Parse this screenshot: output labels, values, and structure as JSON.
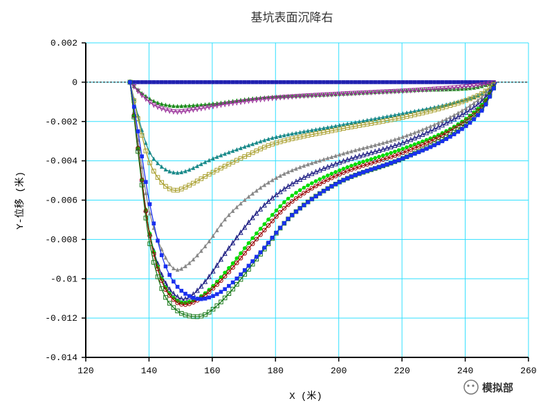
{
  "chart_data": {
    "type": "line",
    "title": "基坑表面沉降右",
    "xlabel": "X (米)",
    "ylabel": "Y-位移 (米)",
    "xlim": [
      120,
      260
    ],
    "ylim": [
      -0.014,
      0.002
    ],
    "x_ticks": [
      "120",
      "140",
      "160",
      "180",
      "200",
      "220",
      "240",
      "260"
    ],
    "y_ticks": [
      "0.002",
      "0",
      "-0.002",
      "-0.004",
      "-0.006",
      "-0.008",
      "-0.01",
      "-0.012",
      "-0.014"
    ],
    "grid": true,
    "legend": "none",
    "series": [
      {
        "color": "#2020b0",
        "marker": "square",
        "points": [
          [
            134,
            0
          ],
          [
            250,
            0
          ]
        ]
      },
      {
        "color": "#1e8c1e",
        "marker": "triangle",
        "points": [
          [
            134,
            0
          ],
          [
            138,
            -0.0006
          ],
          [
            142,
            -0.001
          ],
          [
            147,
            -0.0012
          ],
          [
            152,
            -0.0012
          ],
          [
            160,
            -0.0011
          ],
          [
            175,
            -0.0008
          ],
          [
            200,
            -0.0006
          ],
          [
            225,
            -0.0004
          ],
          [
            242,
            -0.0003
          ],
          [
            250,
            0
          ]
        ]
      },
      {
        "color": "#9a309a",
        "marker": "triangle-down",
        "points": [
          [
            134,
            0
          ],
          [
            138,
            -0.0007
          ],
          [
            142,
            -0.0012
          ],
          [
            148,
            -0.0015
          ],
          [
            154,
            -0.0014
          ],
          [
            165,
            -0.0011
          ],
          [
            180,
            -0.0008
          ],
          [
            200,
            -0.0006
          ],
          [
            225,
            -0.0004
          ],
          [
            242,
            -0.0002
          ],
          [
            250,
            0
          ]
        ]
      },
      {
        "color": "#1a8a8a",
        "marker": "triangle",
        "points": [
          [
            134,
            0
          ],
          [
            137,
            -0.002
          ],
          [
            140,
            -0.0035
          ],
          [
            144,
            -0.0043
          ],
          [
            148,
            -0.0046
          ],
          [
            152,
            -0.0045
          ],
          [
            160,
            -0.0039
          ],
          [
            170,
            -0.0033
          ],
          [
            180,
            -0.0028
          ],
          [
            200,
            -0.0022
          ],
          [
            220,
            -0.0016
          ],
          [
            235,
            -0.0011
          ],
          [
            245,
            -0.0006
          ],
          [
            250,
            0
          ]
        ]
      },
      {
        "color": "#aaa030",
        "marker": "open-square",
        "points": [
          [
            134,
            0
          ],
          [
            137,
            -0.0022
          ],
          [
            140,
            -0.004
          ],
          [
            144,
            -0.0051
          ],
          [
            148,
            -0.0055
          ],
          [
            152,
            -0.0053
          ],
          [
            160,
            -0.0046
          ],
          [
            170,
            -0.0038
          ],
          [
            180,
            -0.0031
          ],
          [
            200,
            -0.0024
          ],
          [
            220,
            -0.0018
          ],
          [
            235,
            -0.0012
          ],
          [
            245,
            -0.0006
          ],
          [
            250,
            0
          ]
        ]
      },
      {
        "color": "#888888",
        "marker": "triangle",
        "points": [
          [
            134,
            0
          ],
          [
            137,
            -0.0035
          ],
          [
            140,
            -0.0065
          ],
          [
            144,
            -0.0085
          ],
          [
            148,
            -0.0095
          ],
          [
            152,
            -0.0093
          ],
          [
            158,
            -0.0083
          ],
          [
            165,
            -0.0068
          ],
          [
            175,
            -0.0054
          ],
          [
            185,
            -0.0045
          ],
          [
            200,
            -0.0037
          ],
          [
            220,
            -0.0028
          ],
          [
            235,
            -0.0018
          ],
          [
            245,
            -0.0008
          ],
          [
            250,
            0
          ]
        ]
      },
      {
        "color": "#1a1a80",
        "marker": "open-triangle",
        "points": [
          [
            134,
            0
          ],
          [
            137,
            -0.004
          ],
          [
            140,
            -0.0075
          ],
          [
            144,
            -0.0098
          ],
          [
            148,
            -0.0108
          ],
          [
            152,
            -0.011
          ],
          [
            158,
            -0.0101
          ],
          [
            165,
            -0.0085
          ],
          [
            175,
            -0.0065
          ],
          [
            185,
            -0.0052
          ],
          [
            200,
            -0.0041
          ],
          [
            220,
            -0.0031
          ],
          [
            235,
            -0.002
          ],
          [
            245,
            -0.001
          ],
          [
            250,
            0
          ]
        ]
      },
      {
        "color": "#00dd00",
        "marker": "filled-circle",
        "points": [
          [
            134,
            0
          ],
          [
            137,
            -0.004
          ],
          [
            140,
            -0.0075
          ],
          [
            144,
            -0.01
          ],
          [
            148,
            -0.011
          ],
          [
            152,
            -0.0112
          ],
          [
            158,
            -0.0107
          ],
          [
            165,
            -0.0095
          ],
          [
            175,
            -0.0075
          ],
          [
            185,
            -0.0058
          ],
          [
            200,
            -0.0045
          ],
          [
            220,
            -0.0034
          ],
          [
            235,
            -0.0024
          ],
          [
            245,
            -0.0012
          ],
          [
            250,
            0
          ]
        ]
      },
      {
        "color": "#990000",
        "marker": "open-circle",
        "points": [
          [
            134,
            0
          ],
          [
            137,
            -0.004
          ],
          [
            140,
            -0.0076
          ],
          [
            144,
            -0.0101
          ],
          [
            148,
            -0.0111
          ],
          [
            152,
            -0.0113
          ],
          [
            158,
            -0.0108
          ],
          [
            165,
            -0.0097
          ],
          [
            175,
            -0.0078
          ],
          [
            185,
            -0.0061
          ],
          [
            200,
            -0.0047
          ],
          [
            220,
            -0.0036
          ],
          [
            235,
            -0.0025
          ],
          [
            245,
            -0.0013
          ],
          [
            250,
            0
          ]
        ]
      },
      {
        "color": "#1a7a1a",
        "marker": "open-square",
        "points": [
          [
            134,
            0
          ],
          [
            137,
            -0.0042
          ],
          [
            140,
            -0.008
          ],
          [
            144,
            -0.0105
          ],
          [
            148,
            -0.0115
          ],
          [
            153,
            -0.0119
          ],
          [
            158,
            -0.0118
          ],
          [
            165,
            -0.0108
          ],
          [
            175,
            -0.0088
          ],
          [
            185,
            -0.0068
          ],
          [
            200,
            -0.0051
          ],
          [
            220,
            -0.0039
          ],
          [
            235,
            -0.0027
          ],
          [
            245,
            -0.0014
          ],
          [
            250,
            0
          ]
        ]
      },
      {
        "color": "#1a30ee",
        "marker": "filled-square",
        "points": [
          [
            134,
            0
          ],
          [
            137,
            -0.003
          ],
          [
            140,
            -0.006
          ],
          [
            144,
            -0.0088
          ],
          [
            148,
            -0.0102
          ],
          [
            153,
            -0.0109
          ],
          [
            158,
            -0.011
          ],
          [
            165,
            -0.0104
          ],
          [
            175,
            -0.0087
          ],
          [
            185,
            -0.0068
          ],
          [
            200,
            -0.0051
          ],
          [
            220,
            -0.0039
          ],
          [
            235,
            -0.0028
          ],
          [
            245,
            -0.0015
          ],
          [
            250,
            0
          ]
        ]
      }
    ]
  },
  "watermark": {
    "text": "模拟部",
    "icon": "wechat-icon"
  }
}
